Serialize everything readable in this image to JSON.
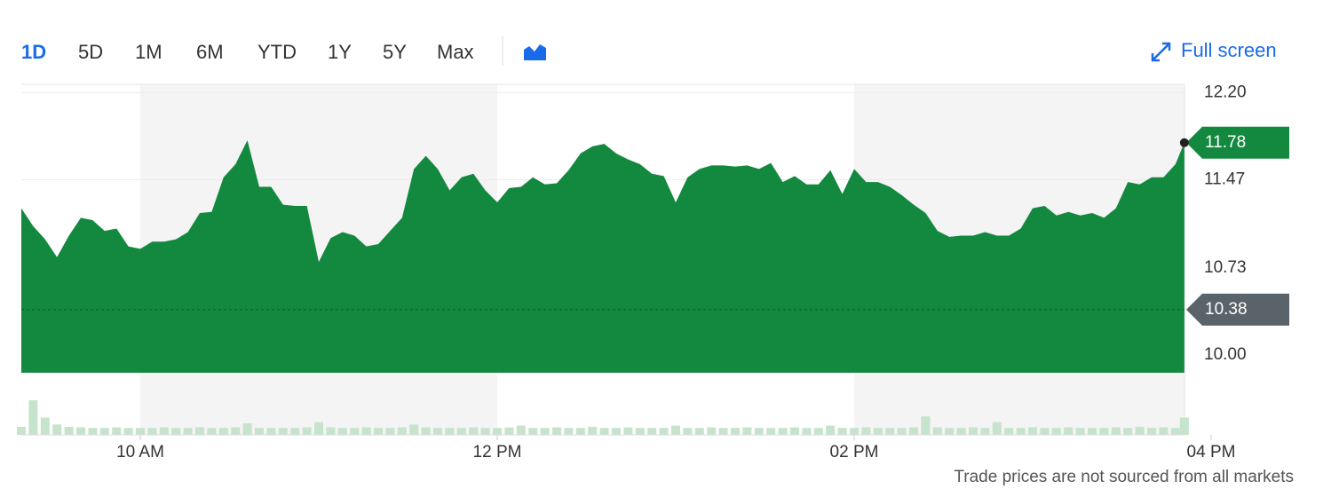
{
  "ui": {
    "ranges": [
      "1D",
      "5D",
      "1M",
      "6M",
      "YTD",
      "1Y",
      "5Y",
      "Max"
    ],
    "selected_range": "1D",
    "fullscreen": "Full screen",
    "footnote": "Trade prices are not sourced from all markets"
  },
  "chart_data": {
    "type": "area",
    "color": "#13893f",
    "volume_color": "#c6e3cc",
    "x": [
      560,
      564,
      568,
      572,
      576,
      580,
      584,
      588,
      592,
      596,
      600,
      604,
      608,
      612,
      616,
      620,
      624,
      628,
      632,
      636,
      640,
      644,
      648,
      652,
      656,
      660,
      664,
      668,
      672,
      676,
      680,
      684,
      688,
      692,
      696,
      700,
      704,
      708,
      712,
      716,
      720,
      724,
      728,
      732,
      736,
      740,
      744,
      748,
      752,
      756,
      760,
      764,
      768,
      772,
      776,
      780,
      784,
      788,
      792,
      796,
      800,
      804,
      808,
      812,
      816,
      820,
      824,
      828,
      832,
      836,
      840,
      844,
      848,
      852,
      856,
      860,
      864,
      868,
      872,
      876,
      880,
      884,
      888,
      892,
      896,
      900,
      904,
      908,
      912,
      916,
      920,
      924,
      928,
      932,
      936,
      940,
      944,
      948,
      951
    ],
    "values": [
      11.23,
      11.08,
      10.97,
      10.82,
      11.0,
      11.15,
      11.13,
      11.04,
      11.06,
      10.91,
      10.89,
      10.95,
      10.95,
      10.97,
      11.03,
      11.19,
      11.2,
      11.49,
      11.6,
      11.8,
      11.41,
      11.41,
      11.26,
      11.25,
      11.25,
      10.78,
      10.98,
      11.03,
      11.0,
      10.91,
      10.93,
      11.04,
      11.15,
      11.56,
      11.67,
      11.56,
      11.38,
      11.49,
      11.52,
      11.38,
      11.28,
      11.4,
      11.41,
      11.49,
      11.43,
      11.44,
      11.55,
      11.69,
      11.75,
      11.77,
      11.69,
      11.64,
      11.6,
      11.52,
      11.5,
      11.28,
      11.49,
      11.56,
      11.59,
      11.59,
      11.58,
      11.59,
      11.56,
      11.61,
      11.45,
      11.5,
      11.43,
      11.43,
      11.55,
      11.35,
      11.56,
      11.45,
      11.45,
      11.41,
      11.34,
      11.26,
      11.19,
      11.04,
      10.99,
      11.0,
      11.0,
      11.03,
      11.0,
      11.0,
      11.06,
      11.23,
      11.25,
      11.17,
      11.2,
      11.17,
      11.19,
      11.15,
      11.23,
      11.45,
      11.43,
      11.49,
      11.49,
      11.6,
      11.78
    ],
    "volume": [
      14,
      60,
      30,
      18,
      14,
      13,
      12,
      12,
      13,
      12,
      12,
      12,
      13,
      12,
      12,
      13,
      12,
      12,
      13,
      20,
      12,
      12,
      12,
      12,
      13,
      22,
      13,
      12,
      12,
      13,
      12,
      12,
      13,
      18,
      13,
      12,
      12,
      12,
      13,
      12,
      12,
      13,
      16,
      12,
      12,
      13,
      12,
      12,
      14,
      12,
      12,
      13,
      12,
      12,
      12,
      16,
      12,
      12,
      13,
      12,
      12,
      13,
      12,
      12,
      12,
      13,
      12,
      12,
      16,
      12,
      12,
      13,
      12,
      12,
      12,
      13,
      32,
      13,
      12,
      12,
      13,
      12,
      22,
      12,
      12,
      13,
      12,
      12,
      13,
      12,
      12,
      12,
      13,
      12,
      14,
      12,
      13,
      12,
      30
    ],
    "y2lim": [
      0,
      100
    ],
    "ylim": [
      9.85,
      12.27
    ],
    "yticks": [
      {
        "value": 10,
        "label": "10.00"
      },
      10.73,
      11.47,
      {
        "value": 12.2,
        "label": "12.20"
      }
    ],
    "xlim": [
      560,
      960
    ],
    "xticks": [
      {
        "value": 600,
        "label": "10 AM"
      },
      {
        "value": 720,
        "label": "12 PM"
      },
      {
        "value": 840,
        "label": "02 PM"
      },
      {
        "value": 960,
        "label": "04 PM"
      }
    ],
    "current_price": {
      "value": 11.78,
      "label": "11.78"
    },
    "previous_close": {
      "value": 10.38,
      "label": "10.38",
      "color": "#5b636a"
    },
    "grid": true
  }
}
